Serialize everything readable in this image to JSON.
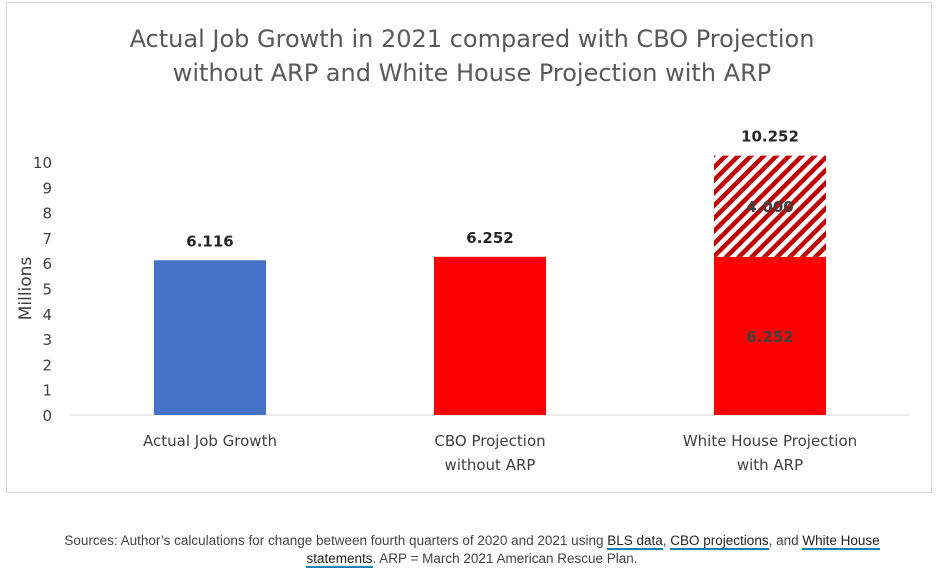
{
  "chart_data": {
    "type": "bar",
    "title_lines": [
      "Actual Job Growth in 2021 compared with CBO Projection",
      "without ARP and White House Projection with ARP"
    ],
    "ylabel": "Millions",
    "xlabel": "",
    "ylim": [
      0,
      10
    ],
    "yticks": [
      "0",
      "1",
      "2",
      "3",
      "4",
      "5",
      "6",
      "7",
      "8",
      "9",
      "10"
    ],
    "grid": false,
    "legend": "none",
    "categories": [
      [
        "Actual Job Growth"
      ],
      [
        "CBO Projection",
        "without ARP"
      ],
      [
        "White House Projection",
        "with ARP"
      ]
    ],
    "bars": [
      {
        "segments": [
          {
            "value": 6.116,
            "color": "#4472C4",
            "pattern": "solid"
          }
        ],
        "total": 6.116,
        "total_label": "6.116"
      },
      {
        "segments": [
          {
            "value": 6.252,
            "color": "#FF0000",
            "pattern": "solid"
          }
        ],
        "total": 6.252,
        "total_label": "6.252"
      },
      {
        "segments": [
          {
            "value": 6.252,
            "color": "#FF0000",
            "pattern": "solid",
            "label": "6.252"
          },
          {
            "value": 4.0,
            "color": "#C00000",
            "pattern": "hatched",
            "label": "4.000"
          }
        ],
        "total": 10.252,
        "total_label": "10.252"
      }
    ]
  },
  "sources": {
    "prefix": "Sources: Author’s calculations for change between fourth quarters of 2020 and 2021 using ",
    "link1": "BLS data",
    "sep1": ", ",
    "link2": "CBO projections",
    "sep2": ", and ",
    "link3": "White House",
    "line2_link": "statements",
    "line2_rest": ". ARP = March 2021 American Rescue Plan."
  }
}
